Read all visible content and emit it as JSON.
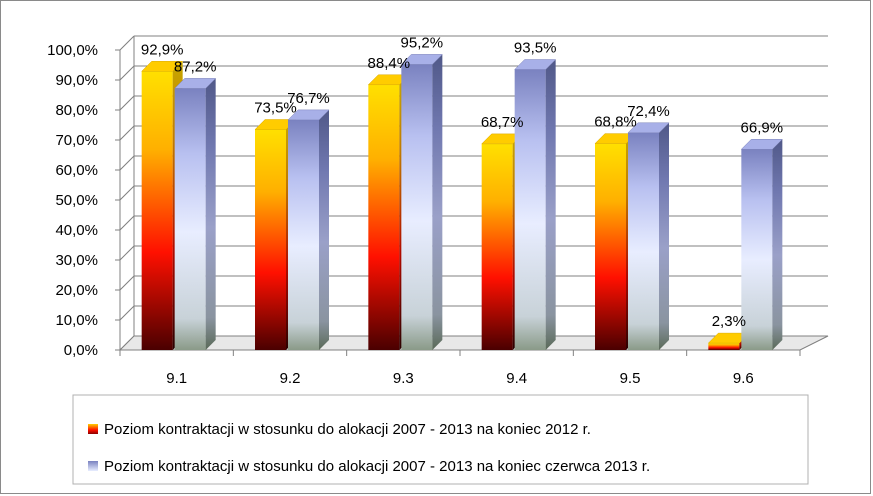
{
  "chart_data": {
    "type": "bar",
    "categories": [
      "9.1",
      "9.2",
      "9.3",
      "9.4",
      "9.5",
      "9.6"
    ],
    "series": [
      {
        "name": "Poziom kontraktacji w stosunku do alokacji 2007 - 2013 na koniec 2012 r.",
        "values": [
          92.9,
          73.5,
          88.4,
          68.7,
          68.8,
          2.3
        ],
        "labels": [
          "92,9%",
          "73,5%",
          "88,4%",
          "68,7%",
          "68,8%",
          "2,3%"
        ],
        "colors": [
          "#4a0000",
          "#ff1000",
          "#ffb000",
          "#ffe000"
        ]
      },
      {
        "name": "Poziom kontraktacji w stosunku do alokacji 2007 - 2013 na koniec czerwca 2013 r.",
        "values": [
          87.2,
          76.7,
          95.2,
          93.5,
          72.4,
          66.9
        ],
        "labels": [
          "87,2%",
          "76,7%",
          "95,2%",
          "93,5%",
          "72,4%",
          "66,9%"
        ],
        "colors": [
          "#9aa89a",
          "#e6ecff",
          "#c8d0ff",
          "#8088c8"
        ]
      }
    ],
    "ylim": [
      0,
      100
    ],
    "yticks": [
      "0,0%",
      "10,0%",
      "20,0%",
      "30,0%",
      "40,0%",
      "50,0%",
      "60,0%",
      "70,0%",
      "80,0%",
      "90,0%",
      "100,0%"
    ],
    "grid": true,
    "legend_position": "bottom",
    "three_d": true
  }
}
